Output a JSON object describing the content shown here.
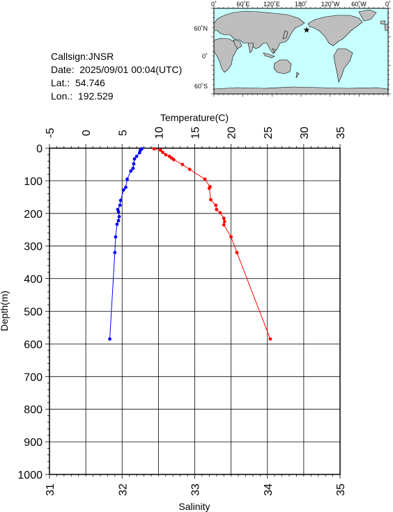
{
  "station": {
    "callsign": "Callsign:JNSR",
    "date": "Date:  2025/09/01 00:04(UTC)",
    "lat": "Lat.:  54.746",
    "lon": "Lon.:  192.529"
  },
  "map": {
    "lon_labels": [
      "0˚",
      "60˚E",
      "120˚E",
      "180˚",
      "120˚W",
      "60˚W",
      "0˚"
    ],
    "lat_labels": [
      "60˚N",
      "0˚",
      "60˚S"
    ],
    "ocean_color": "#c8ffff",
    "land_color": "#bebebe",
    "marker_color": "#ff0000"
  },
  "chart_data": {
    "type": "line",
    "top_axis_label": "Temperature(C)",
    "bottom_axis_label": "Salinity",
    "ylabel": "Depth(m)",
    "temperature_ticks": [
      "-5",
      "0",
      "5",
      "10",
      "15",
      "20",
      "25",
      "30",
      "35"
    ],
    "salinity_ticks": [
      "31",
      "32",
      "33",
      "34",
      "35"
    ],
    "depth_ticks": [
      "0",
      "100",
      "200",
      "300",
      "400",
      "500",
      "600",
      "700",
      "800",
      "900",
      "1000"
    ],
    "xlim_temperature": [
      -5,
      35
    ],
    "xlim_salinity": [
      31,
      35
    ],
    "ylim": [
      0,
      1000
    ],
    "grid": true,
    "series": [
      {
        "axis": "temperature",
        "color": "#ff0000",
        "points": [
          {
            "x": 9.4,
            "y": 2
          },
          {
            "x": 10.3,
            "y": 6
          },
          {
            "x": 10.6,
            "y": 13
          },
          {
            "x": 11.0,
            "y": 20
          },
          {
            "x": 11.5,
            "y": 25
          },
          {
            "x": 11.8,
            "y": 30
          },
          {
            "x": 12.1,
            "y": 35
          },
          {
            "x": 13.3,
            "y": 50
          },
          {
            "x": 14.3,
            "y": 65
          },
          {
            "x": 16.4,
            "y": 95
          },
          {
            "x": 17.1,
            "y": 118
          },
          {
            "x": 17.0,
            "y": 123
          },
          {
            "x": 17.2,
            "y": 158
          },
          {
            "x": 17.9,
            "y": 175
          },
          {
            "x": 18.0,
            "y": 188
          },
          {
            "x": 18.5,
            "y": 198
          },
          {
            "x": 19.0,
            "y": 215
          },
          {
            "x": 19.1,
            "y": 225
          },
          {
            "x": 19.0,
            "y": 235
          },
          {
            "x": 20.0,
            "y": 272
          },
          {
            "x": 20.8,
            "y": 320
          },
          {
            "x": 25.4,
            "y": 585
          }
        ]
      },
      {
        "axis": "salinity",
        "color": "#0000ff",
        "points": [
          {
            "x": 32.27,
            "y": 2
          },
          {
            "x": 32.25,
            "y": 7
          },
          {
            "x": 32.24,
            "y": 14
          },
          {
            "x": 32.2,
            "y": 25
          },
          {
            "x": 32.17,
            "y": 33
          },
          {
            "x": 32.16,
            "y": 48
          },
          {
            "x": 32.15,
            "y": 62
          },
          {
            "x": 32.12,
            "y": 70
          },
          {
            "x": 32.07,
            "y": 95
          },
          {
            "x": 32.05,
            "y": 120
          },
          {
            "x": 32.02,
            "y": 128
          },
          {
            "x": 31.98,
            "y": 160
          },
          {
            "x": 31.97,
            "y": 175
          },
          {
            "x": 31.94,
            "y": 188
          },
          {
            "x": 31.95,
            "y": 195
          },
          {
            "x": 31.96,
            "y": 210
          },
          {
            "x": 31.95,
            "y": 222
          },
          {
            "x": 31.93,
            "y": 233
          },
          {
            "x": 31.91,
            "y": 272
          },
          {
            "x": 31.9,
            "y": 320
          },
          {
            "x": 31.83,
            "y": 585
          }
        ]
      }
    ]
  }
}
